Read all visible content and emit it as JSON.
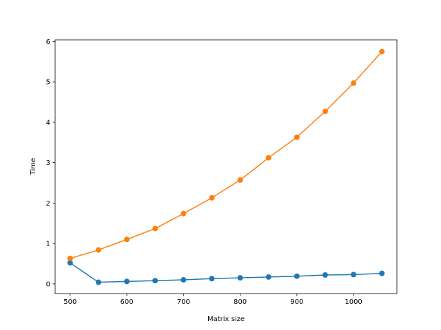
{
  "chart_data": {
    "type": "line",
    "title": "",
    "xlabel": "Matrix size",
    "ylabel": "Time",
    "xlim": [
      473.5,
      1076.5
    ],
    "ylim": [
      -0.24,
      6.04
    ],
    "xticks": [
      500,
      600,
      700,
      800,
      900,
      1000
    ],
    "yticks": [
      0,
      1,
      2,
      3,
      4,
      5,
      6
    ],
    "grid": false,
    "legend": "none",
    "x": [
      500,
      550,
      600,
      650,
      700,
      750,
      800,
      850,
      900,
      950,
      1000,
      1050
    ],
    "series": [
      {
        "color": "#1f77b4",
        "marker": "circle",
        "values": [
          0.52,
          0.04,
          0.06,
          0.08,
          0.1,
          0.13,
          0.15,
          0.17,
          0.19,
          0.22,
          0.23,
          0.26
        ]
      },
      {
        "color": "#ff7f0e",
        "marker": "circle",
        "values": [
          0.63,
          0.84,
          1.1,
          1.37,
          1.74,
          2.13,
          2.57,
          3.12,
          3.63,
          4.27,
          4.97,
          5.75
        ]
      }
    ]
  }
}
